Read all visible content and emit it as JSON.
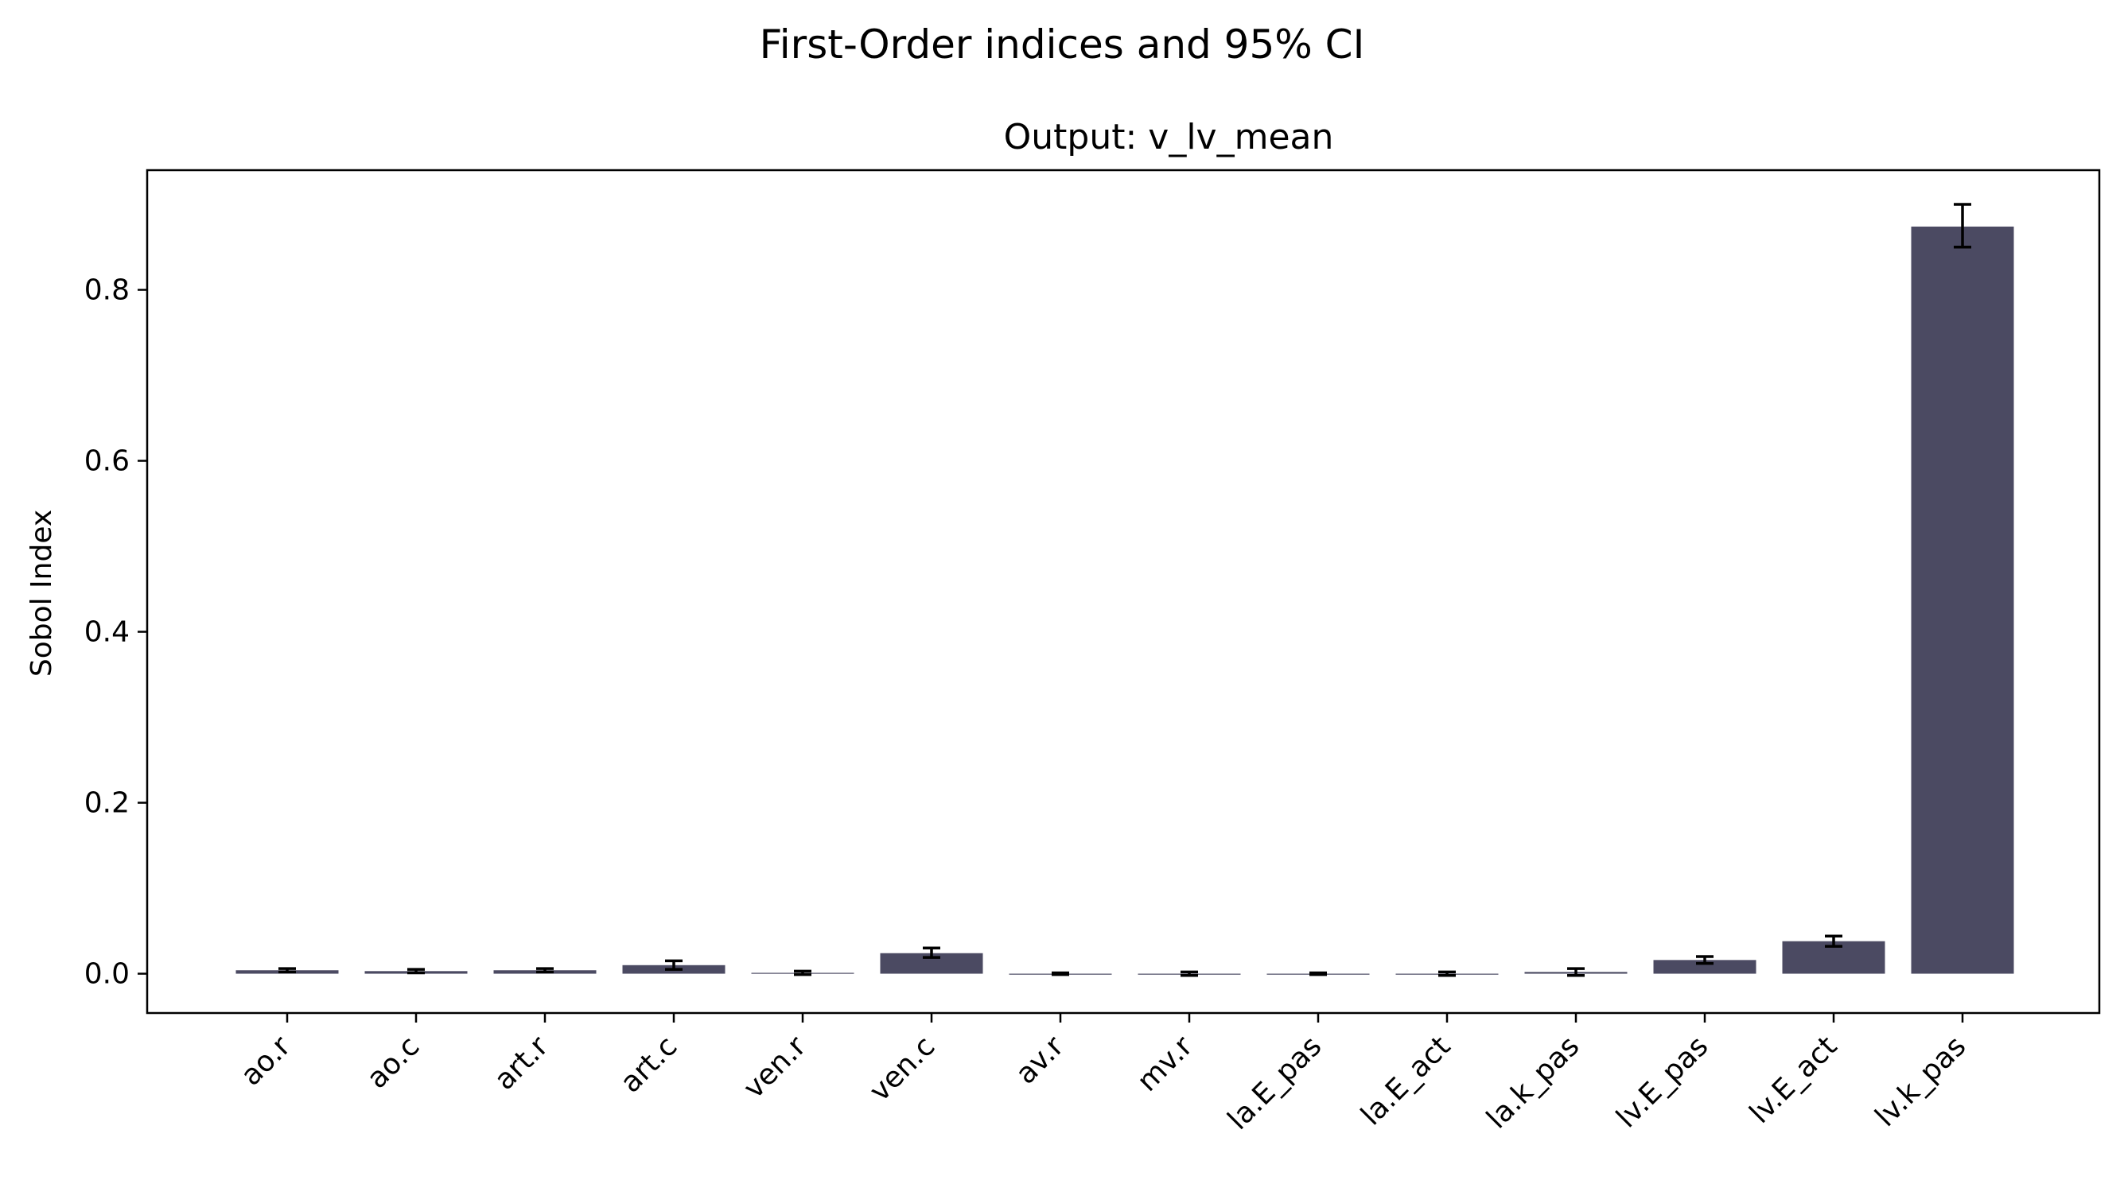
{
  "chart_data": {
    "type": "bar",
    "suptitle": "First-Order indices and 95% CI",
    "title": "Output: v_lv_mean",
    "xlabel": "",
    "ylabel": "Sobol Index",
    "ylim": [
      -0.046,
      0.94
    ],
    "yticks": [
      0.0,
      0.2,
      0.4,
      0.6,
      0.8
    ],
    "ytick_labels": [
      "0.0",
      "0.2",
      "0.4",
      "0.6",
      "0.8"
    ],
    "categories": [
      "ao.r",
      "ao.c",
      "art.r",
      "art.c",
      "ven.r",
      "ven.c",
      "av.r",
      "mv.r",
      "la.E_pas",
      "la.E_act",
      "la.k_pas",
      "lv.E_pas",
      "lv.E_act",
      "lv.k_pas"
    ],
    "values": [
      0.004,
      0.003,
      0.004,
      0.01,
      0.001,
      0.024,
      0.0,
      0.0,
      0.0,
      0.0,
      0.002,
      0.016,
      0.038,
      0.874
    ],
    "ci_low": [
      0.002,
      0.001,
      0.002,
      0.005,
      -0.001,
      0.019,
      -0.001,
      -0.002,
      -0.001,
      -0.002,
      -0.002,
      0.012,
      0.032,
      0.85
    ],
    "ci_high": [
      0.006,
      0.005,
      0.006,
      0.015,
      0.003,
      0.03,
      0.001,
      0.002,
      0.001,
      0.002,
      0.006,
      0.02,
      0.044,
      0.9
    ],
    "bar_color": "#4b4a62",
    "error_color": "#000000",
    "grid": false,
    "legend": "none"
  }
}
